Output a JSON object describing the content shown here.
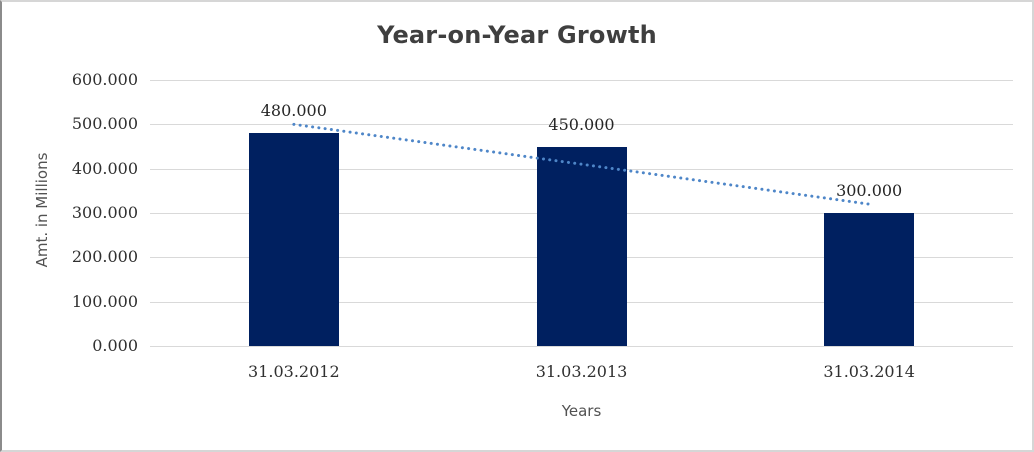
{
  "chart_data": {
    "type": "bar",
    "title": "Year-on-Year Growth",
    "xlabel": "Years",
    "ylabel": "Amt. in Millions",
    "categories": [
      "31.03.2012",
      "31.03.2013",
      "31.03.2014"
    ],
    "values": [
      480,
      450,
      300
    ],
    "value_labels": [
      "480.000",
      "450.000",
      "300.000"
    ],
    "ylim": [
      0,
      600
    ],
    "y_tick_step": 100,
    "y_tick_labels": [
      "0.000",
      "100.000",
      "200.000",
      "300.000",
      "400.000",
      "500.000",
      "600.000"
    ],
    "grid": true,
    "legend": "none",
    "trendline": {
      "type": "linear",
      "style": "dotted",
      "start_value": 500,
      "end_value": 320
    },
    "colors": {
      "bar": "#002060",
      "trendline": "#4e86c8",
      "gridline": "#d9d9d9",
      "axis_line": "#d9d9d9",
      "title_text": "#3f3f3f",
      "tick_text": "#303030",
      "data_label_text": "#262626",
      "axis_title_text": "#525252"
    }
  }
}
